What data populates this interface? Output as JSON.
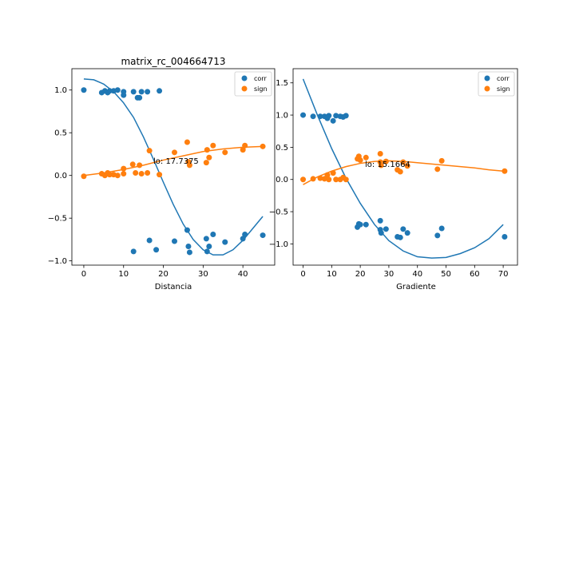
{
  "figure": {
    "background": "#ffffff"
  },
  "chart_data": [
    {
      "type": "scatter",
      "title": "matrix_rc_004664713",
      "xlabel": "Distancia",
      "ylabel": "",
      "xlim": [
        -3,
        48
      ],
      "ylim": [
        -1.05,
        1.25
      ],
      "xticks": [
        0,
        10,
        20,
        30,
        40
      ],
      "xtick_labels": [
        "0",
        "10",
        "20",
        "30",
        "40"
      ],
      "yticks": [
        -1.0,
        -0.5,
        0.0,
        0.5,
        1.0
      ],
      "ytick_labels": [
        "−1.0",
        "−0.5",
        "0.0",
        "0.5",
        "1.0"
      ],
      "grid": false,
      "legend": {
        "position": "top-right",
        "entries": [
          "corr",
          "sign"
        ]
      },
      "annotation": {
        "text": "lo: 17.7375",
        "x": 17.7375,
        "y": 0.18
      },
      "series": [
        {
          "name": "corr",
          "color": "#1f77b4",
          "points": [
            [
              0,
              1.0
            ],
            [
              4.5,
              0.97
            ],
            [
              5.3,
              0.99
            ],
            [
              6,
              0.97
            ],
            [
              6.5,
              0.99
            ],
            [
              7.5,
              0.99
            ],
            [
              8.5,
              1.0
            ],
            [
              10,
              0.98
            ],
            [
              10,
              0.94
            ],
            [
              12.5,
              0.98
            ],
            [
              13.5,
              0.91
            ],
            [
              14,
              0.91
            ],
            [
              14.5,
              0.98
            ],
            [
              16,
              0.98
            ],
            [
              19,
              0.99
            ],
            [
              12.5,
              -0.89
            ],
            [
              16.5,
              -0.76
            ],
            [
              18.2,
              -0.87
            ],
            [
              22.8,
              -0.77
            ],
            [
              26,
              -0.64
            ],
            [
              26.3,
              -0.83
            ],
            [
              26.6,
              -0.9
            ],
            [
              30.8,
              -0.74
            ],
            [
              31,
              -0.89
            ],
            [
              31.5,
              -0.83
            ],
            [
              32.5,
              -0.69
            ],
            [
              35.5,
              -0.78
            ],
            [
              40,
              -0.74
            ],
            [
              40.5,
              -0.69
            ],
            [
              45,
              -0.7
            ]
          ],
          "fit": [
            [
              0,
              1.13
            ],
            [
              2.5,
              1.12
            ],
            [
              5,
              1.07
            ],
            [
              7.5,
              0.98
            ],
            [
              10,
              0.85
            ],
            [
              12.5,
              0.68
            ],
            [
              15,
              0.45
            ],
            [
              17.5,
              0.19
            ],
            [
              20,
              -0.08
            ],
            [
              22.5,
              -0.34
            ],
            [
              25,
              -0.57
            ],
            [
              27.5,
              -0.75
            ],
            [
              30,
              -0.87
            ],
            [
              32.5,
              -0.93
            ],
            [
              35,
              -0.93
            ],
            [
              37.5,
              -0.87
            ],
            [
              40,
              -0.76
            ],
            [
              42.5,
              -0.62
            ],
            [
              45,
              -0.48
            ]
          ]
        },
        {
          "name": "sign",
          "color": "#ff7f0e",
          "points": [
            [
              0,
              -0.01
            ],
            [
              4.5,
              0.02
            ],
            [
              5.3,
              0.0
            ],
            [
              6,
              0.03
            ],
            [
              6.5,
              0.01
            ],
            [
              7.5,
              0.01
            ],
            [
              8.5,
              0.0
            ],
            [
              10,
              0.08
            ],
            [
              10,
              0.02
            ],
            [
              12.3,
              0.13
            ],
            [
              13,
              0.03
            ],
            [
              14,
              0.12
            ],
            [
              14.5,
              0.02
            ],
            [
              16,
              0.03
            ],
            [
              16.5,
              0.29
            ],
            [
              19,
              0.01
            ],
            [
              22.8,
              0.27
            ],
            [
              26,
              0.39
            ],
            [
              26.3,
              0.16
            ],
            [
              26.6,
              0.12
            ],
            [
              30.8,
              0.15
            ],
            [
              31,
              0.3
            ],
            [
              31.5,
              0.21
            ],
            [
              32.5,
              0.35
            ],
            [
              35.5,
              0.27
            ],
            [
              40,
              0.3
            ],
            [
              40.5,
              0.35
            ],
            [
              45,
              0.34
            ]
          ],
          "fit": [
            [
              0,
              0.0
            ],
            [
              5,
              0.03
            ],
            [
              10,
              0.07
            ],
            [
              15,
              0.12
            ],
            [
              20,
              0.18
            ],
            [
              25,
              0.23
            ],
            [
              30,
              0.28
            ],
            [
              35,
              0.31
            ],
            [
              40,
              0.33
            ],
            [
              45,
              0.34
            ]
          ]
        }
      ]
    },
    {
      "type": "scatter",
      "title": "",
      "xlabel": "Gradiente",
      "ylabel": "",
      "xlim": [
        -3.5,
        75
      ],
      "ylim": [
        -1.33,
        1.72
      ],
      "xticks": [
        0,
        10,
        20,
        30,
        40,
        50,
        60,
        70
      ],
      "xtick_labels": [
        "0",
        "10",
        "20",
        "30",
        "40",
        "50",
        "60",
        "70"
      ],
      "yticks": [
        -1.0,
        -0.5,
        0.0,
        0.5,
        1.0,
        1.5
      ],
      "ytick_labels": [
        "−1.0",
        "−0.5",
        "0.0",
        "0.5",
        "1.0",
        "1.5"
      ],
      "grid": false,
      "legend": {
        "position": "top-right",
        "entries": [
          "corr",
          "sign"
        ]
      },
      "annotation": {
        "text": "lo: 15.1664",
        "x": 15.1664,
        "y": 0.2
      },
      "series": [
        {
          "name": "corr",
          "color": "#1f77b4",
          "points": [
            [
              0,
              1.0
            ],
            [
              3.5,
              0.98
            ],
            [
              6,
              0.98
            ],
            [
              7.5,
              0.98
            ],
            [
              8.5,
              0.95
            ],
            [
              9,
              0.99
            ],
            [
              10.5,
              0.91
            ],
            [
              11.5,
              0.99
            ],
            [
              13,
              0.98
            ],
            [
              14,
              0.97
            ],
            [
              15,
              0.99
            ],
            [
              19,
              -0.74
            ],
            [
              19.5,
              -0.69
            ],
            [
              20,
              -0.7
            ],
            [
              22,
              -0.7
            ],
            [
              27,
              -0.64
            ],
            [
              27,
              -0.78
            ],
            [
              27.3,
              -0.83
            ],
            [
              29,
              -0.77
            ],
            [
              33,
              -0.89
            ],
            [
              34,
              -0.9
            ],
            [
              35,
              -0.77
            ],
            [
              36.5,
              -0.83
            ],
            [
              47,
              -0.87
            ],
            [
              48.5,
              -0.76
            ],
            [
              70.5,
              -0.89
            ]
          ],
          "fit": [
            [
              0,
              1.56
            ],
            [
              5,
              1.0
            ],
            [
              10,
              0.48
            ],
            [
              15,
              0.02
            ],
            [
              20,
              -0.37
            ],
            [
              25,
              -0.7
            ],
            [
              30,
              -0.95
            ],
            [
              35,
              -1.11
            ],
            [
              40,
              -1.2
            ],
            [
              45,
              -1.22
            ],
            [
              50,
              -1.21
            ],
            [
              55,
              -1.15
            ],
            [
              60,
              -1.06
            ],
            [
              65,
              -0.92
            ],
            [
              70,
              -0.7
            ]
          ]
        },
        {
          "name": "sign",
          "color": "#ff7f0e",
          "points": [
            [
              0,
              0.0
            ],
            [
              3.5,
              0.01
            ],
            [
              6,
              0.02
            ],
            [
              7.5,
              0.01
            ],
            [
              8.5,
              0.07
            ],
            [
              9,
              0.0
            ],
            [
              10.5,
              0.1
            ],
            [
              11.5,
              0.0
            ],
            [
              13,
              0.0
            ],
            [
              14,
              0.03
            ],
            [
              15,
              0.0
            ],
            [
              19,
              0.32
            ],
            [
              19.5,
              0.36
            ],
            [
              20,
              0.3
            ],
            [
              22,
              0.34
            ],
            [
              27,
              0.4
            ],
            [
              27,
              0.27
            ],
            [
              27.3,
              0.22
            ],
            [
              29,
              0.28
            ],
            [
              33,
              0.15
            ],
            [
              34,
              0.12
            ],
            [
              35,
              0.27
            ],
            [
              36.5,
              0.21
            ],
            [
              47,
              0.16
            ],
            [
              48.5,
              0.29
            ],
            [
              70.5,
              0.13
            ]
          ],
          "fit": [
            [
              0,
              -0.08
            ],
            [
              5,
              0.04
            ],
            [
              10,
              0.13
            ],
            [
              15,
              0.2
            ],
            [
              20,
              0.25
            ],
            [
              25,
              0.28
            ],
            [
              30,
              0.29
            ],
            [
              35,
              0.28
            ],
            [
              40,
              0.26
            ],
            [
              45,
              0.24
            ],
            [
              50,
              0.22
            ],
            [
              55,
              0.2
            ],
            [
              60,
              0.18
            ],
            [
              65,
              0.15
            ],
            [
              70,
              0.13
            ]
          ]
        }
      ]
    }
  ]
}
